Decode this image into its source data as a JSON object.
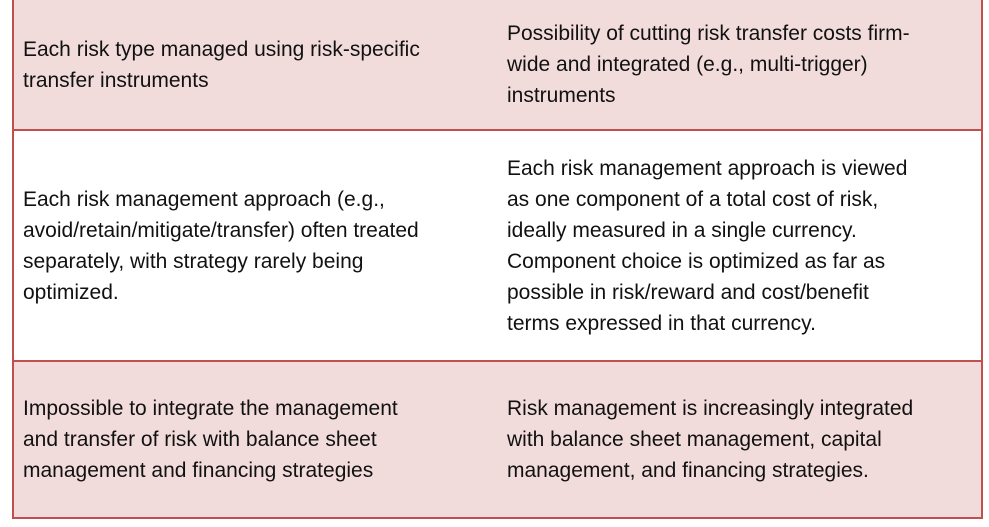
{
  "table": {
    "rows": [
      {
        "left": "Each risk type managed using risk-specific\ntransfer instruments",
        "right": "Possibility of cutting risk transfer costs firm-\nwide and integrated (e.g., multi-trigger)\ninstruments"
      },
      {
        "left": "Each risk management approach (e.g.,\navoid/retain/mitigate/transfer) often treated\nseparately, with strategy rarely being\noptimized.",
        "right": "Each risk management approach is viewed\nas one component of a total cost of risk,\nideally measured in a single currency.\nComponent choice is optimized as far as\npossible in risk/reward and cost/benefit\nterms expressed in that currency."
      },
      {
        "left": "Impossible to integrate the management\nand transfer of risk with balance sheet\nmanagement and financing strategies",
        "right": "Risk management is increasingly integrated\nwith balance sheet management, capital\nmanagement, and financing strategies."
      }
    ]
  }
}
